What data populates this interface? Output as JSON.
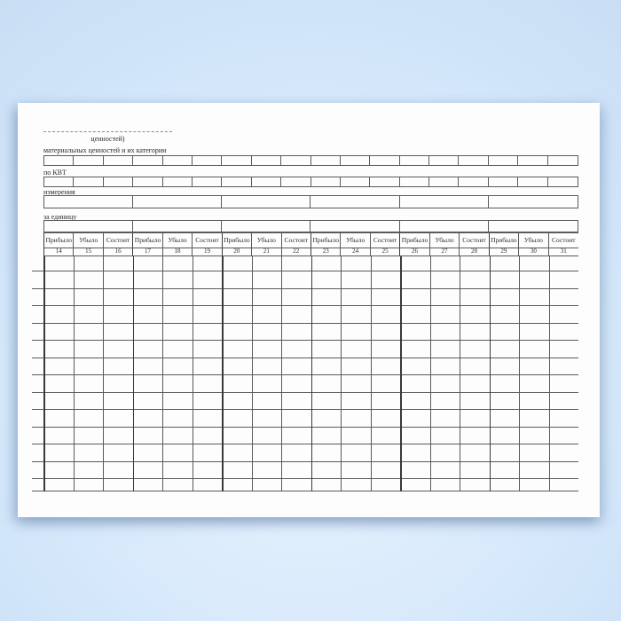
{
  "form": {
    "continuation_note": "ценностей)",
    "field_labels": [
      "материальных ценностей и их категории",
      "по КВТ",
      "измерения",
      "за единицу"
    ]
  },
  "table": {
    "group_header_labels": [
      "Прибыло",
      "Убыло",
      "Состоит"
    ],
    "group_count": 6,
    "column_numbers": [
      "14",
      "15",
      "16",
      "17",
      "18",
      "19",
      "20",
      "21",
      "22",
      "23",
      "24",
      "25",
      "26",
      "27",
      "28",
      "29",
      "30",
      "31"
    ],
    "blank_row_count": 14
  },
  "colors": {
    "background": "#d5e8fb",
    "page": "#fdfdfe",
    "grid_line": "#5a5a5a",
    "grid_line_heavy": "#3a3a3a",
    "text": "#2f2b27"
  }
}
